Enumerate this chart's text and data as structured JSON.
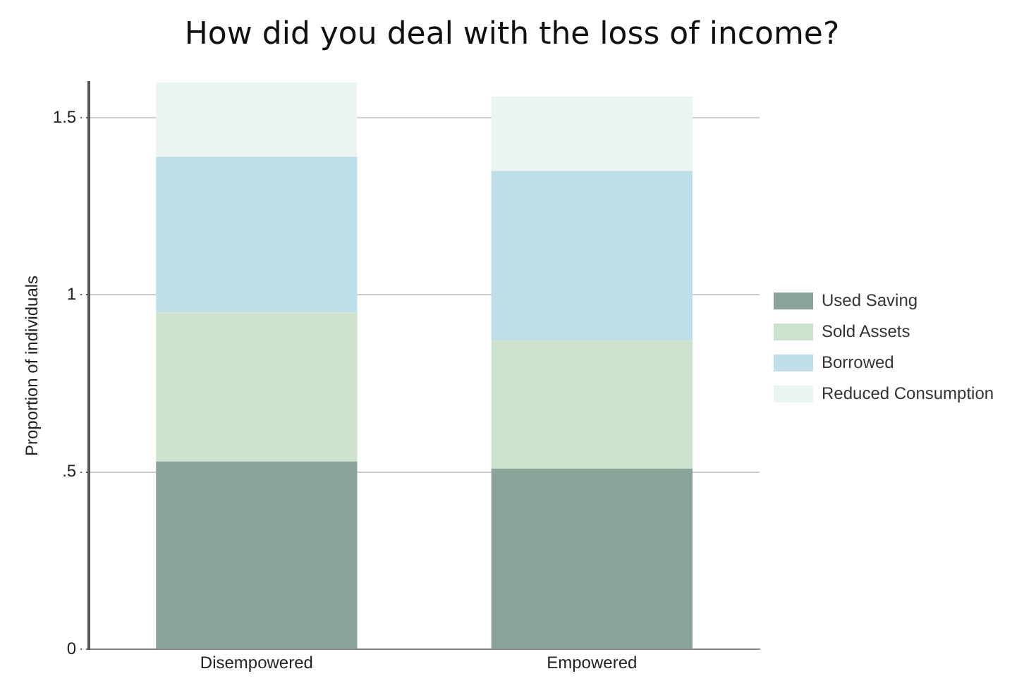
{
  "chart_data": {
    "type": "bar",
    "title": "How did you deal with the loss of income?",
    "ylabel": "Proportion of individuals",
    "categories": [
      "Disempowered",
      "Empowered"
    ],
    "stacked": true,
    "series": [
      {
        "name": "Used Saving",
        "color": "#8aa398",
        "values": [
          0.53,
          0.51
        ]
      },
      {
        "name": "Sold Assets",
        "color": "#cde2cc",
        "values": [
          0.42,
          0.36
        ]
      },
      {
        "name": "Borrowed",
        "color": "#bfdfe8",
        "values": [
          0.44,
          0.48
        ]
      },
      {
        "name": "Reduced Consumption",
        "color": "#eaf4f3",
        "values": [
          0.21,
          0.21
        ]
      }
    ],
    "ylim": [
      0,
      1.6
    ],
    "yticks": [
      0,
      {
        "value": 0.5,
        "label": ".5"
      },
      1,
      1.5
    ],
    "grid": "y",
    "legend": "right"
  }
}
